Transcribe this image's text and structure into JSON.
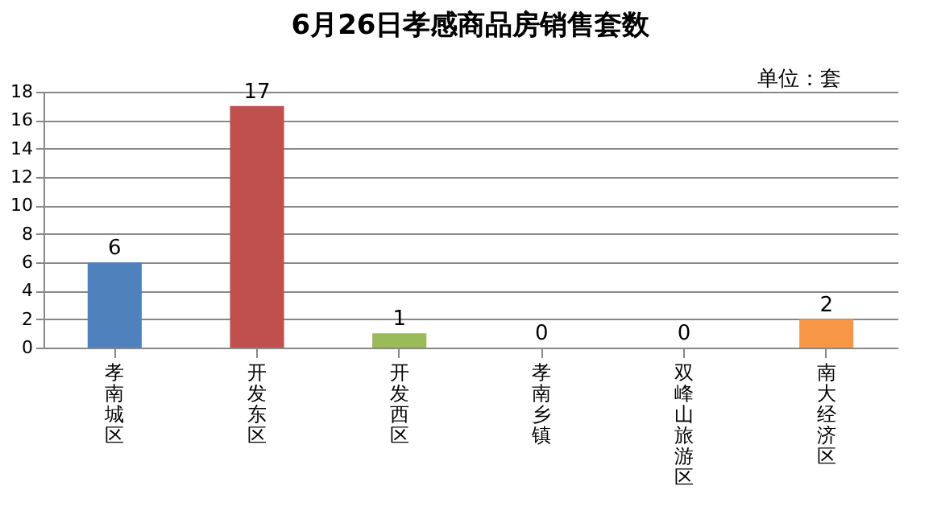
{
  "chart_data": {
    "type": "bar",
    "title": "6月26日孝感商品房销售套数",
    "categories": [
      "孝南城区",
      "开发东区",
      "开发西区",
      "孝南乡镇",
      "双峰山旅游区",
      "南大经济区"
    ],
    "values": [
      6,
      17,
      1,
      0,
      0,
      2
    ],
    "colors": [
      "#4f81bd",
      "#c0504d",
      "#9bbb59",
      "#8064a2",
      "#4bacc6",
      "#f79646"
    ],
    "ylim": [
      0,
      18
    ],
    "yticks": [
      0,
      2,
      4,
      6,
      8,
      10,
      12,
      14,
      16,
      18
    ],
    "grid": "y",
    "data_labels": true,
    "annotations": [
      "单位：套"
    ]
  }
}
